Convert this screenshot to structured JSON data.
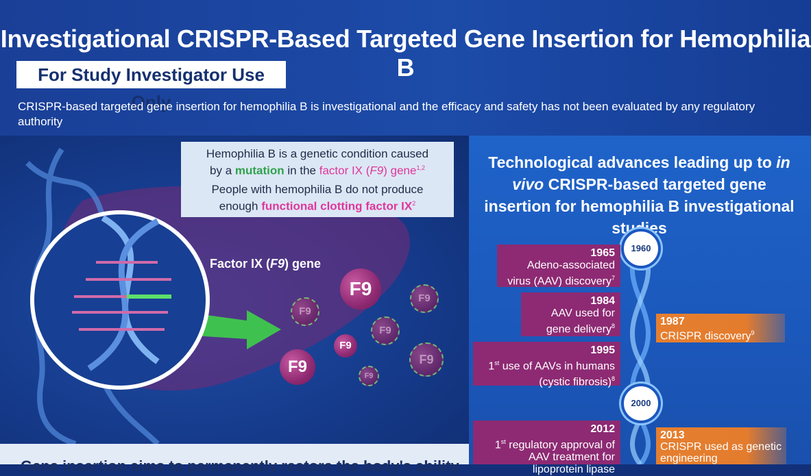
{
  "header": {
    "title": "Investigational CRISPR-Based Targeted Gene Insertion for Hemophilia B",
    "badge": "For Study Investigator Use Only",
    "disclaimer": "CRISPR-based targeted gene insertion for hemophilia B is investigational and the efficacy and safety has not been evaluated by any regulatory authority"
  },
  "info_box": {
    "line1a": "Hemophilia B is a genetic condition caused",
    "line1b_pre": "by a ",
    "line1b_mutation": "mutation",
    "line1b_mid": " in the ",
    "line1b_factor": "factor IX (",
    "line1b_f9": "F9",
    "line1b_gene": ") gene",
    "line1b_sup": "1,2",
    "line2a": "People with hemophilia B do not produce",
    "line2b_pre": "enough ",
    "line2b_hl": "functional clotting factor IX",
    "line2b_sup": "2"
  },
  "gene_label": {
    "pre": "Factor IX (",
    "it": "F9",
    "post": ") gene"
  },
  "f9_label": "F9",
  "timeline": {
    "heading_pre": "Technological advances leading up to ",
    "heading_it": "in vivo",
    "heading_post": " CRISPR-based targeted gene insertion for hemophilia B investigational studies",
    "markers": [
      "1960",
      "2000"
    ],
    "events": [
      {
        "year": "1965",
        "text": "Adeno-associated virus (AAV) discovery",
        "sup": "7"
      },
      {
        "year": "1984",
        "text": "AAV used for gene delivery",
        "sup": "8"
      },
      {
        "year": "1995",
        "text_pre": "1",
        "text_sup1": "st",
        "text": " use of AAVs in humans (cystic fibrosis)",
        "sup": "8"
      },
      {
        "year": "2012",
        "text_pre": "1",
        "text_sup1": "st",
        "text": " regulatory approval of AAV treatment for lipoprotein lipase"
      }
    ],
    "crispr_events": [
      {
        "year": "1987",
        "text": "CRISPR discovery",
        "sup": "9"
      },
      {
        "year": "2013",
        "text": "CRISPR used as genetic engineering"
      }
    ]
  },
  "bottom_text": "Gene insertion aims to permanently restore the body's ability",
  "colors": {
    "header_bg": "#1c4ba8",
    "event_bg": "#8d2a73",
    "crispr_bg": "#e57f2f",
    "accent_pink": "#e0369a",
    "accent_green": "#2fa24b"
  }
}
